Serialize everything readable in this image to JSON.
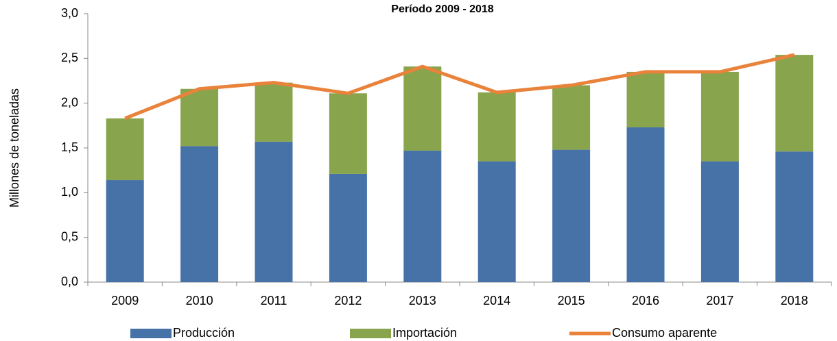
{
  "chart_data": {
    "type": "bar",
    "title": "Período 2009 - 2018",
    "y_label": "Millones de toneladas",
    "categories": [
      "2009",
      "2010",
      "2011",
      "2012",
      "2013",
      "2014",
      "2015",
      "2016",
      "2017",
      "2018"
    ],
    "series": [
      {
        "name": "Producción",
        "color": "#4672a8",
        "type": "bar",
        "values": [
          1.14,
          1.52,
          1.57,
          1.21,
          1.47,
          1.35,
          1.48,
          1.73,
          1.35,
          1.46
        ]
      },
      {
        "name": "Importación",
        "color": "#88a44c",
        "type": "bar",
        "values": [
          0.69,
          0.64,
          0.66,
          0.9,
          0.94,
          0.77,
          0.72,
          0.62,
          1.0,
          1.08
        ]
      },
      {
        "name": "Consumo aparente",
        "color": "#e9823a",
        "type": "line",
        "values": [
          1.83,
          2.16,
          2.23,
          2.11,
          2.41,
          2.12,
          2.2,
          2.35,
          2.35,
          2.54
        ]
      }
    ],
    "stacked": true,
    "ylim": [
      0,
      3
    ],
    "yticks": [
      {
        "value": 0,
        "label": "0,0"
      },
      {
        "value": 0.5,
        "label": "0,5"
      },
      {
        "value": 1,
        "label": "1,0"
      },
      {
        "value": 1.5,
        "label": "1,5"
      },
      {
        "value": 2,
        "label": "2,0"
      },
      {
        "value": 2.5,
        "label": "2,5"
      },
      {
        "value": 3,
        "label": "3,0"
      }
    ]
  }
}
